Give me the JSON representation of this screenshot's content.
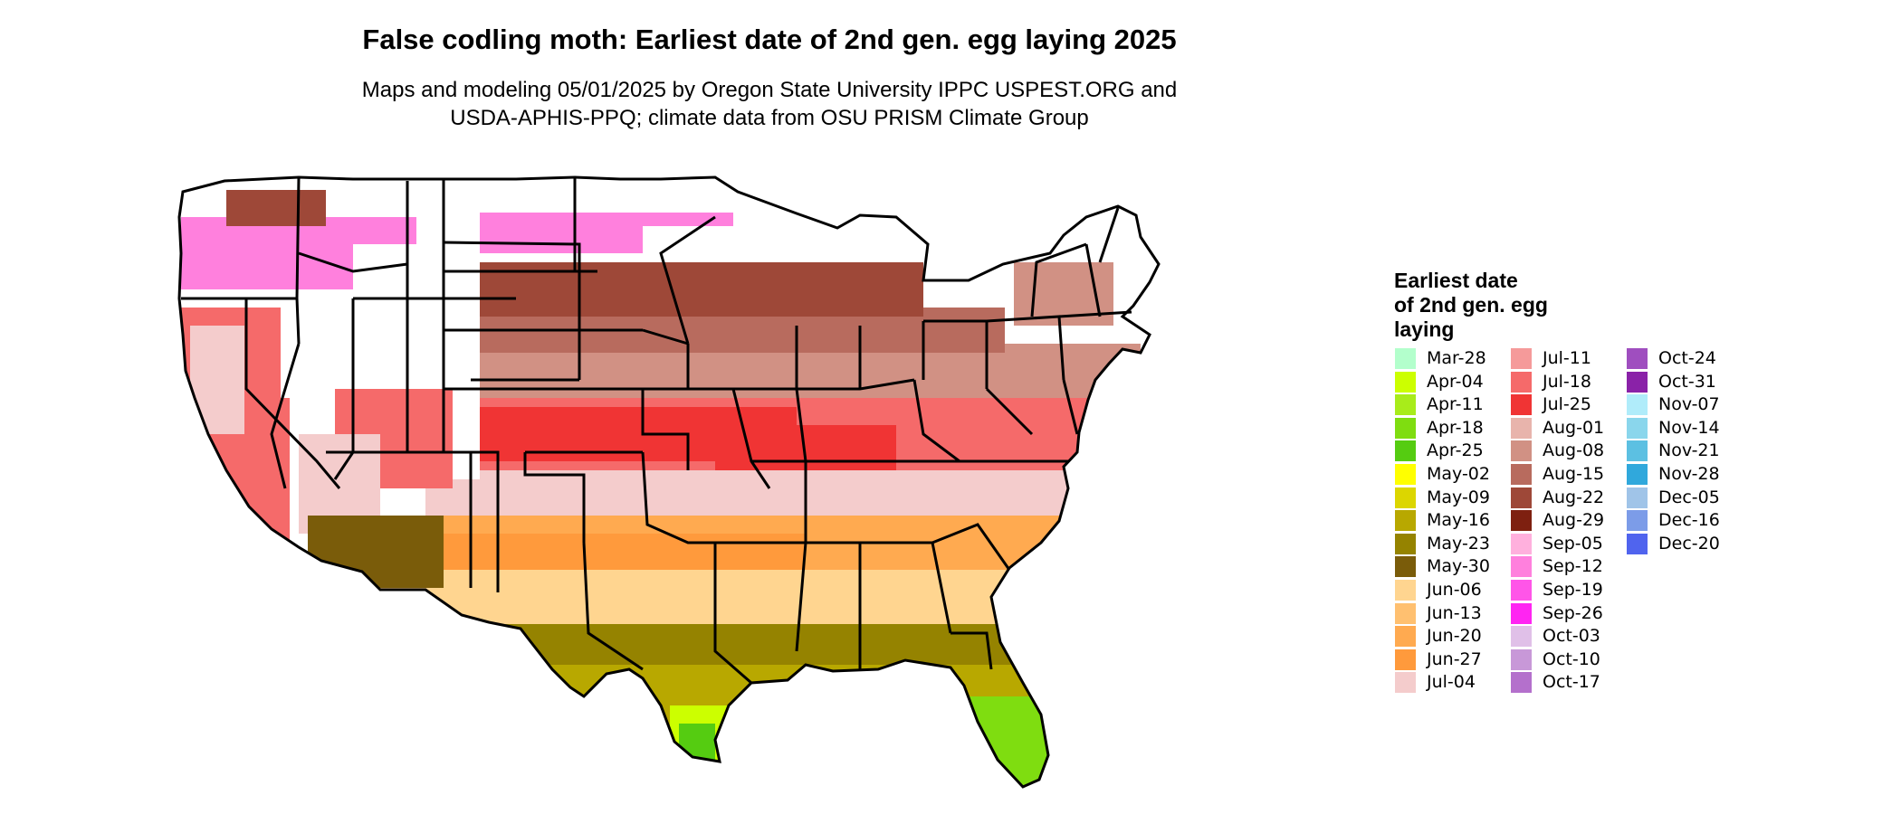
{
  "title": "False codling moth: Earliest date of 2nd gen. egg laying 2025",
  "subtitle_line1": "Maps and modeling 05/01/2025 by Oregon State University IPPC USPEST.ORG and",
  "subtitle_line2": "USDA-APHIS-PPQ; climate data from OSU PRISM Climate Group",
  "legend": {
    "title_lines": [
      "Earliest date",
      "of 2nd gen. egg",
      "laying"
    ],
    "items": [
      {
        "label": "Mar-28",
        "color": "#b3ffcc"
      },
      {
        "label": "Apr-04",
        "color": "#ccff00"
      },
      {
        "label": "Apr-11",
        "color": "#a8ec1a"
      },
      {
        "label": "Apr-18",
        "color": "#7fdd10"
      },
      {
        "label": "Apr-25",
        "color": "#55cc11"
      },
      {
        "label": "May-02",
        "color": "#ffff00"
      },
      {
        "label": "May-09",
        "color": "#dcd600"
      },
      {
        "label": "May-16",
        "color": "#b8a800"
      },
      {
        "label": "May-23",
        "color": "#958300"
      },
      {
        "label": "May-30",
        "color": "#7a5c0a"
      },
      {
        "label": "Jun-06",
        "color": "#ffd590"
      },
      {
        "label": "Jun-13",
        "color": "#ffc070"
      },
      {
        "label": "Jun-20",
        "color": "#ffaa50"
      },
      {
        "label": "Jun-27",
        "color": "#ff9a3c"
      },
      {
        "label": "Jul-04",
        "color": "#f4cccc"
      },
      {
        "label": "Jul-11",
        "color": "#f59a9a"
      },
      {
        "label": "Jul-18",
        "color": "#f56a6a"
      },
      {
        "label": "Jul-25",
        "color": "#f03434"
      },
      {
        "label": "Aug-01",
        "color": "#e8b4ac"
      },
      {
        "label": "Aug-08",
        "color": "#d19184"
      },
      {
        "label": "Aug-15",
        "color": "#b86b5e"
      },
      {
        "label": "Aug-22",
        "color": "#9e4838"
      },
      {
        "label": "Aug-29",
        "color": "#7e2010"
      },
      {
        "label": "Sep-05",
        "color": "#ffb0dd"
      },
      {
        "label": "Sep-12",
        "color": "#ff80dd"
      },
      {
        "label": "Sep-19",
        "color": "#ff55e8"
      },
      {
        "label": "Sep-26",
        "color": "#ff25f2"
      },
      {
        "label": "Oct-03",
        "color": "#e0c0e8"
      },
      {
        "label": "Oct-10",
        "color": "#c898d8"
      },
      {
        "label": "Oct-17",
        "color": "#b470cc"
      },
      {
        "label": "Oct-24",
        "color": "#9f4ebf"
      },
      {
        "label": "Oct-31",
        "color": "#8a22a8"
      },
      {
        "label": "Nov-07",
        "color": "#b0ecfa"
      },
      {
        "label": "Nov-14",
        "color": "#8ad6ec"
      },
      {
        "label": "Nov-21",
        "color": "#5cc0e2"
      },
      {
        "label": "Nov-28",
        "color": "#30a8dc"
      },
      {
        "label": "Dec-05",
        "color": "#a0c4e8"
      },
      {
        "label": "Dec-16",
        "color": "#7c9ce8"
      },
      {
        "label": "Dec-20",
        "color": "#5064ee"
      }
    ]
  }
}
